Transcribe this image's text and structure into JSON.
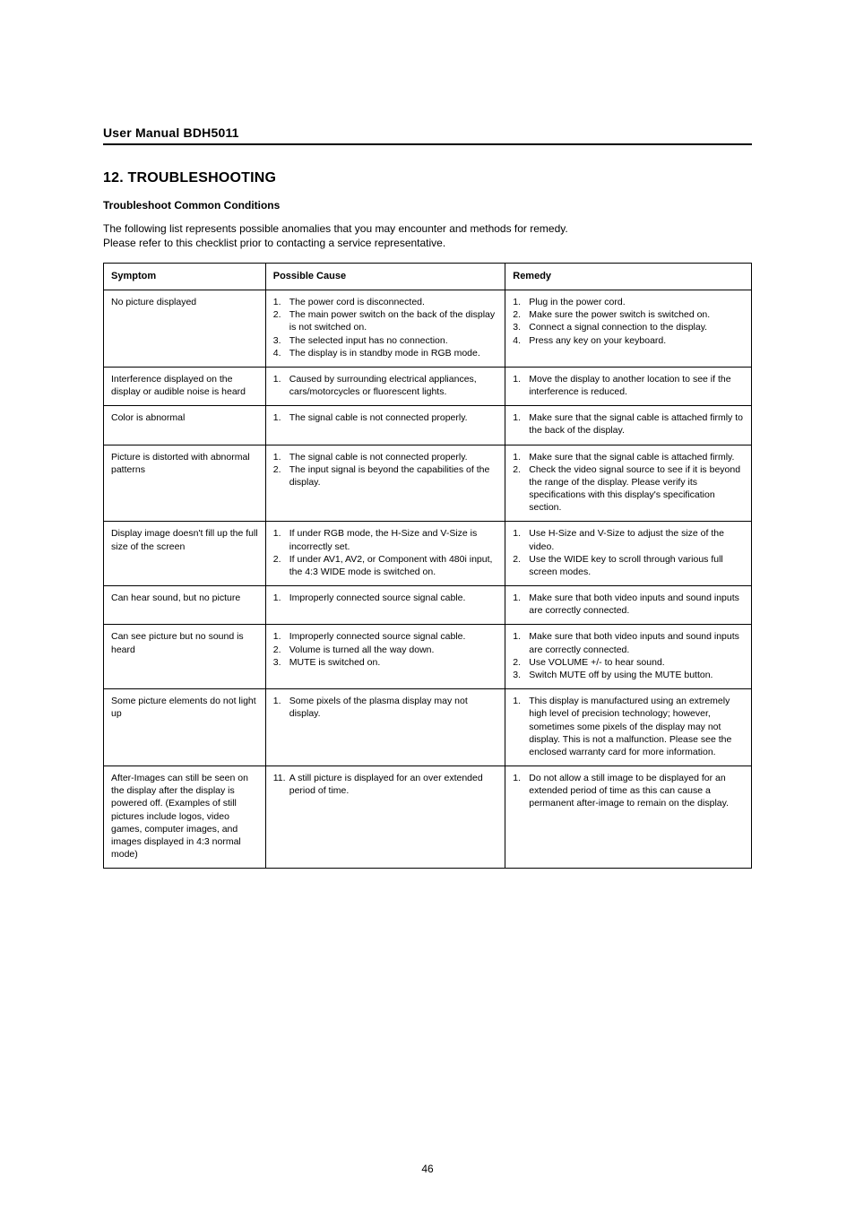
{
  "header": {
    "title": "User Manual BDH5011"
  },
  "section": {
    "heading": "12.  TROUBLESHOOTING",
    "subheading": "Troubleshoot Common Conditions",
    "intro_line1": "The following list represents possible anomalies that you may encounter and methods for remedy.",
    "intro_line2": "Please refer to this checklist prior to contacting a service representative."
  },
  "table": {
    "headers": {
      "symptom": "Symptom",
      "cause": "Possible Cause",
      "remedy": "Remedy"
    },
    "rows": [
      {
        "symptom": "No picture displayed",
        "causes": [
          {
            "n": "1.",
            "t": "The power cord is disconnected."
          },
          {
            "n": "2.",
            "t": "The main power switch on the back of the display is not switched on."
          },
          {
            "n": "3.",
            "t": "The selected input has no connection."
          },
          {
            "n": "4.",
            "t": "The display is in standby mode in RGB mode."
          }
        ],
        "remedies": [
          {
            "n": "1.",
            "t": "Plug in the power cord."
          },
          {
            "n": "2.",
            "t": "Make sure the power switch is switched on."
          },
          {
            "n": "3.",
            "t": "Connect a signal connection to the display."
          },
          {
            "n": "4.",
            "t": "Press any key on your keyboard."
          }
        ]
      },
      {
        "symptom": "Interference displayed on the display or audible noise is heard",
        "causes": [
          {
            "n": "1.",
            "t": "Caused by surrounding electrical appliances, cars/motorcycles or fluorescent lights."
          }
        ],
        "remedies": [
          {
            "n": "1.",
            "t": "Move the display to another location to see if the interference is reduced."
          }
        ]
      },
      {
        "symptom": "Color is abnormal",
        "causes": [
          {
            "n": "1.",
            "t": "The signal cable is not connected properly."
          }
        ],
        "remedies": [
          {
            "n": "1.",
            "t": "Make sure that the signal cable is attached firmly to the back of the display."
          }
        ]
      },
      {
        "symptom": "Picture is distorted with abnormal patterns",
        "causes": [
          {
            "n": "1.",
            "t": "The signal cable is not connected properly."
          },
          {
            "n": "2.",
            "t": "The input signal is beyond the capabilities of the display."
          }
        ],
        "remedies": [
          {
            "n": "1.",
            "t": "Make sure that the signal cable is attached firmly."
          },
          {
            "n": "2.",
            "t": "Check the video signal source to see if it is beyond the range of the display. Please verify its specifications with this display's specification section."
          }
        ]
      },
      {
        "symptom": "Display image doesn't fill up the full size of the screen",
        "causes": [
          {
            "n": "1.",
            "t": "If under RGB mode, the H-Size and V-Size is incorrectly set."
          },
          {
            "n": "2.",
            "t": "If under AV1, AV2, or Component with 480i input, the 4:3 WIDE mode is switched on."
          }
        ],
        "remedies": [
          {
            "n": "1.",
            "t": "Use H-Size and V-Size to adjust the size of the video."
          },
          {
            "n": "2.",
            "t": "Use the WIDE key to scroll through various full screen modes."
          }
        ]
      },
      {
        "symptom": "Can hear sound, but no picture",
        "causes": [
          {
            "n": "1.",
            "t": "Improperly connected source signal cable."
          }
        ],
        "remedies": [
          {
            "n": "1.",
            "t": "Make sure that both video inputs and sound inputs are correctly connected."
          }
        ]
      },
      {
        "symptom": "Can see picture but no sound is heard",
        "causes": [
          {
            "n": "1.",
            "t": "Improperly connected source signal cable."
          },
          {
            "n": "2.",
            "t": "Volume is turned all the way down."
          },
          {
            "n": "3.",
            "t": "MUTE is switched on."
          }
        ],
        "remedies": [
          {
            "n": "1.",
            "t": "Make sure that both video inputs and sound inputs are correctly connected."
          },
          {
            "n": "2.",
            "t": "Use VOLUME +/- to hear sound."
          },
          {
            "n": "3.",
            "t": "Switch MUTE off by using the MUTE button."
          }
        ]
      },
      {
        "symptom": "Some picture elements do not light up",
        "causes": [
          {
            "n": "1.",
            "t": "Some pixels of the plasma display may not display."
          }
        ],
        "remedies": [
          {
            "n": "1.",
            "t": "This display is manufactured using an extremely high level of precision technology; however, sometimes some pixels of the display may not display. This is not a malfunction. Please see the enclosed warranty card for more information."
          }
        ]
      },
      {
        "symptom": "After-Images can still be seen on the display after the display is powered off. (Examples of still pictures include logos, video games, computer images, and images displayed in 4:3 normal mode)",
        "causes": [
          {
            "n": "11.",
            "t": "A still picture is displayed for an over extended period of time."
          }
        ],
        "remedies": [
          {
            "n": "1.",
            "t": "Do not allow a still image to be displayed for an extended period of time as this can cause a permanent after-image to remain on the display."
          }
        ]
      }
    ]
  },
  "page_number": "46"
}
